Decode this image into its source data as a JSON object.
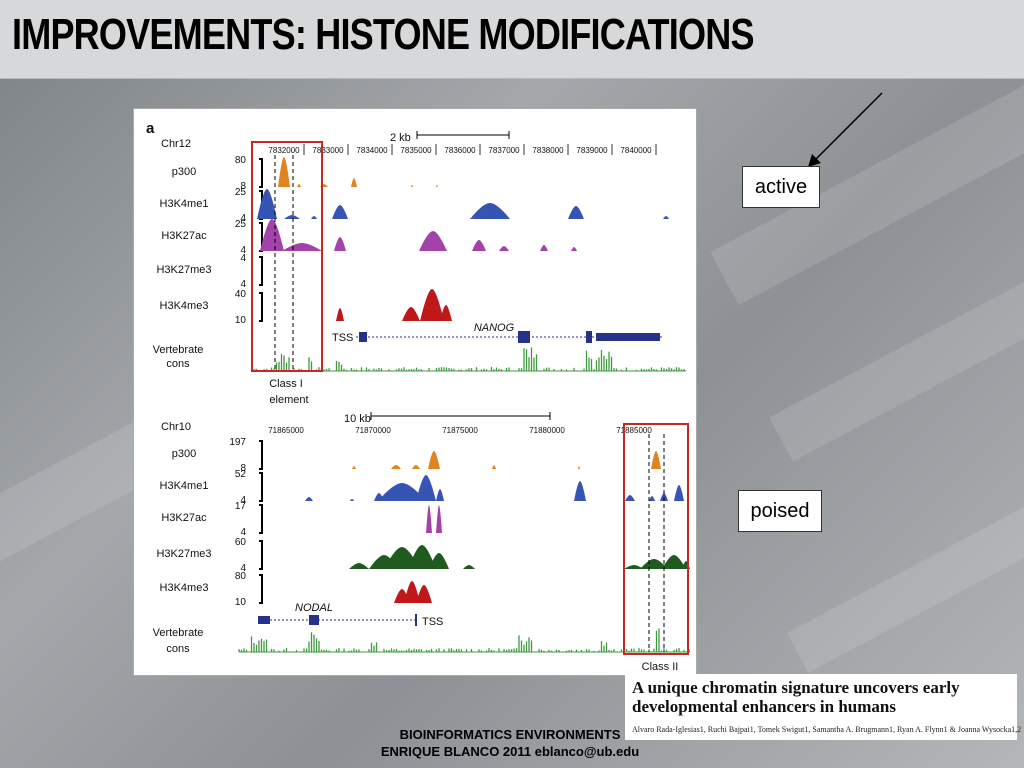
{
  "slide": {
    "title": "IMPROVEMENTS: HISTONE MODIFICATIONS",
    "callouts": {
      "active": "active",
      "poised": "poised"
    },
    "footer": {
      "line1": "BIOINFORMATICS ENVIRONMENTS",
      "line2": "ENRIQUE BLANCO 2011  eblanco@ub.edu"
    },
    "citation": {
      "title": "A unique chromatin signature uncovers early developmental enhancers in humans",
      "authors": "Alvaro Rada-Iglesias1, Ruchi Bajpai1, Tomek Swigut1, Samantha A. Brugmann1, Ryan A. Flynn1 & Joanna Wysocka1,2"
    }
  },
  "figure": {
    "panel_label": "a",
    "colors": {
      "p300": "#e0841f",
      "H3K4me1": "#3654b4",
      "H3K27ac": "#a342a8",
      "H3K27me3": "#1f5a1f",
      "H3K4me3": "#c01818",
      "cons": "#3f9a3f",
      "gene": "#27338a",
      "highlight": "#c62828"
    },
    "top": {
      "chrom": "Chr12",
      "scale_label": "2 kb",
      "coords": [
        "7832000",
        "7833000",
        "7834000",
        "7835000",
        "7836000",
        "7837000",
        "7838000",
        "7839000",
        "7840000"
      ],
      "tracks": [
        {
          "label": "p300",
          "max": "80",
          "min": "8"
        },
        {
          "label": "H3K4me1",
          "max": "25",
          "min": "4"
        },
        {
          "label": "H3K27ac",
          "max": "25",
          "min": "4"
        },
        {
          "label": "H3K27me3",
          "max": "4",
          "min": "4"
        },
        {
          "label": "H3K4me3",
          "max": "40",
          "min": "10"
        }
      ],
      "cons_label": [
        "Vertebrate",
        "cons"
      ],
      "gene": "NANOG",
      "tss": "TSS",
      "class_label": [
        "Class I",
        "element"
      ]
    },
    "bottom": {
      "chrom": "Chr10",
      "scale_label": "10 kb",
      "coords": [
        "71865000",
        "71870000",
        "71875000",
        "71880000",
        "71885000"
      ],
      "tracks": [
        {
          "label": "p300",
          "max": "197",
          "min": "8"
        },
        {
          "label": "H3K4me1",
          "max": "52",
          "min": "4"
        },
        {
          "label": "H3K27ac",
          "max": "17",
          "min": "4"
        },
        {
          "label": "H3K27me3",
          "max": "60",
          "min": "4"
        },
        {
          "label": "H3K4me3",
          "max": "80",
          "min": "10"
        }
      ],
      "cons_label": [
        "Vertebrate",
        "cons"
      ],
      "gene": "NODAL",
      "tss": "TSS",
      "class_label": [
        "Class II"
      ]
    }
  }
}
